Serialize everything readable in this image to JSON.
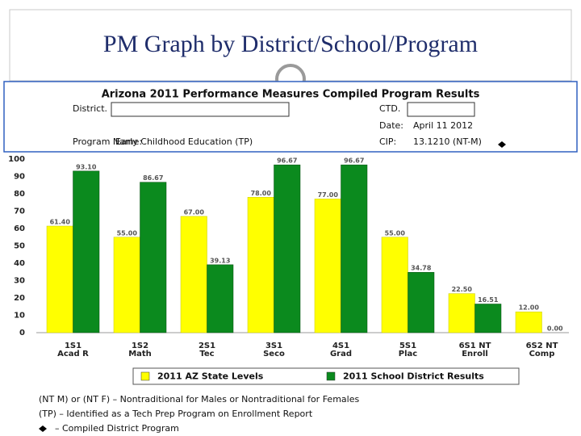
{
  "title": "PM Graph by District/School/Program",
  "header": {
    "heading": "Arizona 2011 Performance Measures Compiled Program Results",
    "district_label": "District.",
    "ctd_label": "CTD.",
    "date_label": "Date:",
    "date": "April 11 2012",
    "program_label": "Program Name:",
    "program": "Early Childhood Education (TP)",
    "cip_label": "CIP:",
    "cip": "13.1210 (NT-M)"
  },
  "chart_data": {
    "type": "bar",
    "categories": [
      [
        "1S1",
        "Acad R"
      ],
      [
        "1S2",
        "Math"
      ],
      [
        "2S1",
        "Tec"
      ],
      [
        "3S1",
        "Seco"
      ],
      [
        "4S1",
        "Grad"
      ],
      [
        "5S1",
        "Plac"
      ],
      [
        "6S1 NT",
        "Enroll"
      ],
      [
        "6S2 NT",
        "Comp"
      ]
    ],
    "series": [
      {
        "name": "2011 AZ State Levels",
        "color": "#ffff00",
        "values": [
          61.4,
          55,
          67,
          78,
          77,
          55,
          22.5,
          12
        ],
        "value_labels": [
          "61.40",
          "55.00",
          "67.00",
          "78.00",
          "77.00",
          "55.00",
          "22.50",
          "12.00"
        ]
      },
      {
        "name": "2011 School District Results",
        "color": "#0b8a1e",
        "values": [
          93.1,
          86.67,
          39.13,
          96.67,
          96.67,
          34.78,
          16.51,
          0
        ],
        "value_labels": [
          "93.10",
          "86.67",
          "39.13",
          "96.67",
          "96.67",
          "34.78",
          "16.51",
          "0.00"
        ]
      }
    ],
    "ylim": [
      0,
      100
    ],
    "yticks": [
      0,
      10,
      20,
      30,
      40,
      50,
      60,
      70,
      80,
      90,
      100
    ],
    "grid": false
  },
  "notes": [
    "(NT M) or (NT F) – Nontraditional for Males or Nontraditional for Females",
    "(TP) – Identified as a Tech Prep Program on Enrollment Report",
    "– Compiled District Program"
  ]
}
